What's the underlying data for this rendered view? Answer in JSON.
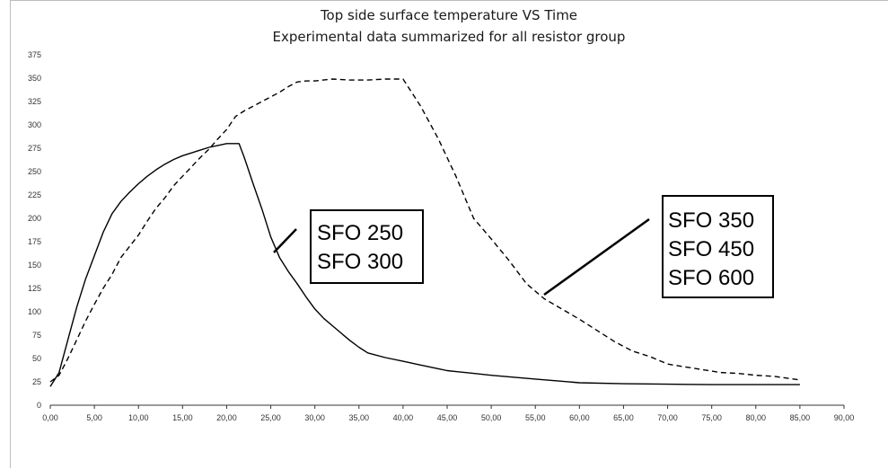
{
  "chart_data": {
    "type": "line",
    "title": "Top side surface temperature VS Time",
    "subtitle": "Experimental data summarized for all resistor group",
    "xlabel": "",
    "ylabel": "",
    "xlim": [
      0,
      90
    ],
    "ylim": [
      0,
      375
    ],
    "x_ticks": [
      "0,00",
      "5,00",
      "10,00",
      "15,00",
      "20,00",
      "25,00",
      "30,00",
      "35,00",
      "40,00",
      "45,00",
      "50,00",
      "55,00",
      "60,00",
      "65,00",
      "70,00",
      "75,00",
      "80,00",
      "85,00",
      "90,00"
    ],
    "y_ticks": [
      "0",
      "25",
      "50",
      "75",
      "100",
      "125",
      "150",
      "175",
      "200",
      "225",
      "250",
      "275",
      "300",
      "325",
      "350",
      "375"
    ],
    "x_tick_values": [
      0,
      5,
      10,
      15,
      20,
      25,
      30,
      35,
      40,
      45,
      50,
      55,
      60,
      65,
      70,
      75,
      80,
      85,
      90
    ],
    "y_tick_values": [
      0,
      25,
      50,
      75,
      100,
      125,
      150,
      175,
      200,
      225,
      250,
      275,
      300,
      325,
      350,
      375
    ],
    "grid": false,
    "series": [
      {
        "style": "solid",
        "color": "#000000",
        "points": [
          [
            0,
            20
          ],
          [
            1,
            35
          ],
          [
            2,
            70
          ],
          [
            3,
            105
          ],
          [
            4,
            135
          ],
          [
            5,
            160
          ],
          [
            6,
            185
          ],
          [
            7,
            205
          ],
          [
            8,
            218
          ],
          [
            9,
            228
          ],
          [
            10,
            237
          ],
          [
            11,
            245
          ],
          [
            12,
            252
          ],
          [
            13,
            258
          ],
          [
            14,
            263
          ],
          [
            15,
            267
          ],
          [
            16,
            270
          ],
          [
            17,
            273
          ],
          [
            18,
            276
          ],
          [
            19,
            278
          ],
          [
            20,
            280
          ],
          [
            21.4,
            280
          ],
          [
            22,
            265
          ],
          [
            23,
            237
          ],
          [
            24,
            210
          ],
          [
            25,
            180
          ],
          [
            26,
            158
          ],
          [
            27,
            143
          ],
          [
            28,
            130
          ],
          [
            29,
            116
          ],
          [
            30,
            103
          ],
          [
            31,
            93
          ],
          [
            32,
            85
          ],
          [
            33,
            77
          ],
          [
            34,
            69
          ],
          [
            35,
            62
          ],
          [
            36,
            56
          ],
          [
            38,
            51
          ],
          [
            40,
            47
          ],
          [
            42,
            43
          ],
          [
            44,
            39
          ],
          [
            45,
            37
          ],
          [
            48,
            34
          ],
          [
            50,
            32
          ],
          [
            55,
            28
          ],
          [
            60,
            24
          ],
          [
            65,
            23
          ],
          [
            70,
            22.5
          ],
          [
            75,
            22
          ],
          [
            80,
            22
          ],
          [
            85,
            22
          ]
        ]
      },
      {
        "style": "dashed",
        "color": "#000000",
        "points": [
          [
            0,
            25
          ],
          [
            1,
            32
          ],
          [
            2,
            50
          ],
          [
            3,
            70
          ],
          [
            4,
            90
          ],
          [
            5,
            108
          ],
          [
            6,
            125
          ],
          [
            7,
            140
          ],
          [
            8,
            158
          ],
          [
            9,
            170
          ],
          [
            10,
            182
          ],
          [
            11,
            197
          ],
          [
            12,
            211
          ],
          [
            13,
            222
          ],
          [
            14,
            235
          ],
          [
            15,
            245
          ],
          [
            16,
            255
          ],
          [
            17,
            265
          ],
          [
            18,
            274
          ],
          [
            19,
            285
          ],
          [
            20,
            295
          ],
          [
            21,
            309
          ],
          [
            22,
            315
          ],
          [
            23,
            320
          ],
          [
            24,
            325
          ],
          [
            25,
            330
          ],
          [
            26,
            335
          ],
          [
            27,
            341
          ],
          [
            28,
            346
          ],
          [
            29,
            347
          ],
          [
            30,
            347
          ],
          [
            32,
            349
          ],
          [
            34,
            348
          ],
          [
            36,
            348
          ],
          [
            38,
            349
          ],
          [
            40,
            349
          ],
          [
            42,
            320
          ],
          [
            44,
            285
          ],
          [
            46,
            245
          ],
          [
            48,
            200
          ],
          [
            50,
            178
          ],
          [
            52,
            155
          ],
          [
            54,
            130
          ],
          [
            56,
            114
          ],
          [
            58,
            103
          ],
          [
            60,
            92
          ],
          [
            62,
            80
          ],
          [
            64,
            68
          ],
          [
            66,
            58
          ],
          [
            68,
            52
          ],
          [
            70,
            44
          ],
          [
            72,
            41
          ],
          [
            74,
            38
          ],
          [
            76,
            35
          ],
          [
            78,
            34
          ],
          [
            80,
            32
          ],
          [
            82,
            31
          ],
          [
            85,
            27
          ]
        ]
      }
    ],
    "annotations": [
      {
        "lines": [
          "SFO 250",
          "SFO 300"
        ]
      },
      {
        "lines": [
          "SFO 350",
          "SFO 450",
          "SFO 600"
        ]
      }
    ]
  }
}
